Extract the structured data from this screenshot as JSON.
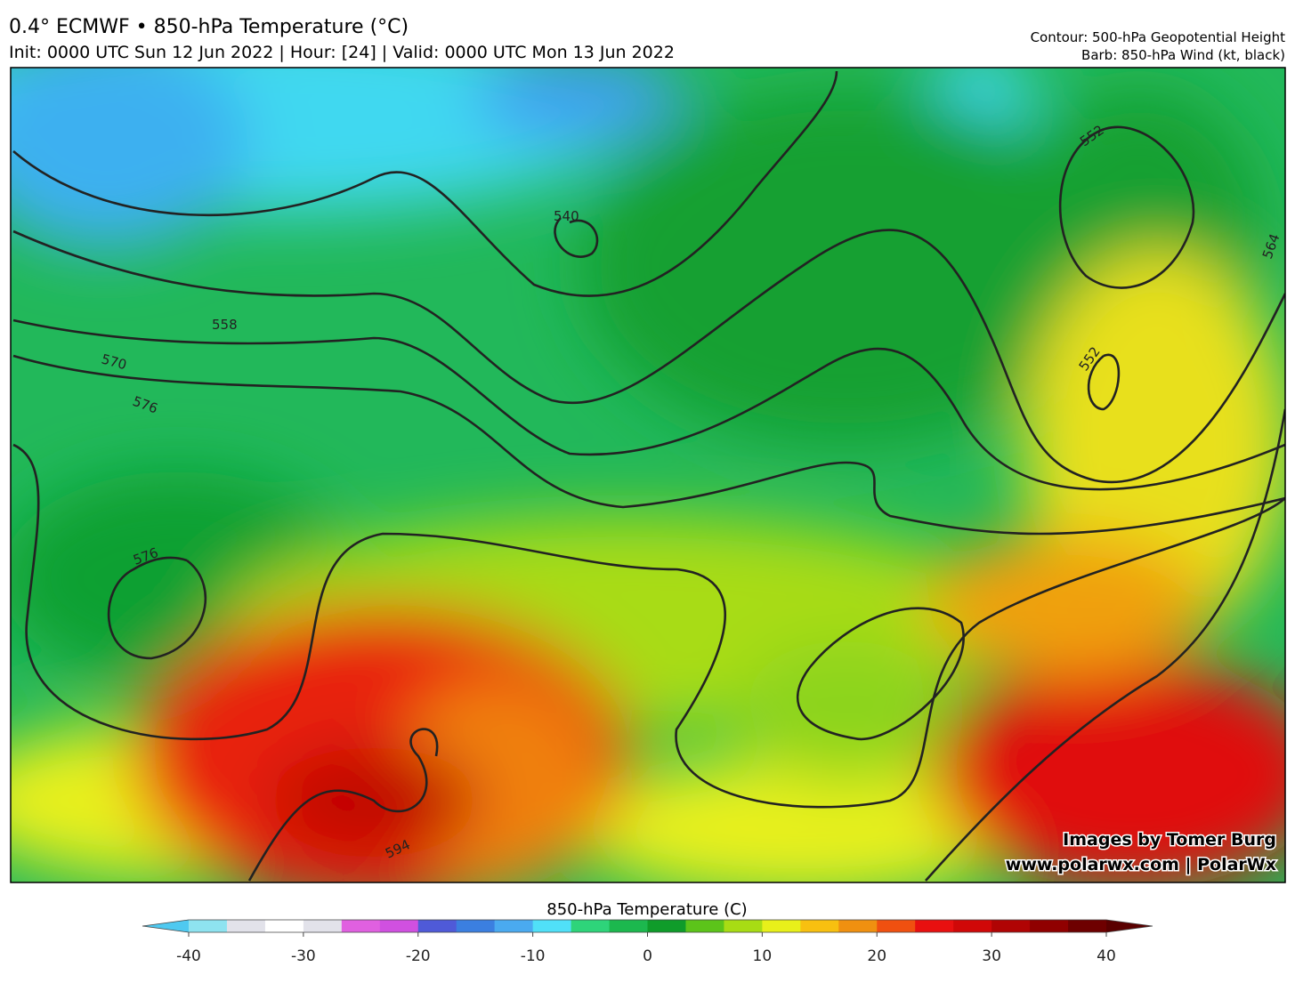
{
  "header": {
    "title": "0.4° ECMWF • 850-hPa Temperature (°C)",
    "subtitle": "Init: 0000 UTC Sun 12 Jun 2022 | Hour: [24] | Valid: 0000 UTC Mon 13 Jun 2022",
    "contour_note": "Contour: 500-hPa Geopotential Height",
    "barb_note": "Barb: 850-hPa Wind (kt, black)"
  },
  "map": {
    "contour_labels": [
      540,
      558,
      570,
      576,
      576,
      552,
      552,
      564,
      594
    ]
  },
  "watermark": {
    "line1": "Images by Tomer Burg",
    "line2": "www.polarwx.com | PolarWx"
  },
  "colorbar": {
    "title": "850-hPa Temperature (C)",
    "range": [
      -40,
      40
    ],
    "ticks": [
      -40,
      -30,
      -20,
      -10,
      0,
      10,
      20,
      30,
      40
    ],
    "colors": [
      "#8ee3f0",
      "#e2e2ea",
      "#ffffff",
      "#e2e2ea",
      "#e060e0",
      "#d050e0",
      "#4f5ad8",
      "#3b7fe0",
      "#4aaaf0",
      "#50e0f8",
      "#2ed47a",
      "#1cb84e",
      "#0f9c2a",
      "#5cc41a",
      "#a8dc14",
      "#e8f01a",
      "#f8c010",
      "#f09010",
      "#f05010",
      "#e81010",
      "#d00808",
      "#b00404",
      "#900000",
      "#6e0000"
    ],
    "low_color": "#4fc9f0",
    "high_color": "#5a0000"
  }
}
